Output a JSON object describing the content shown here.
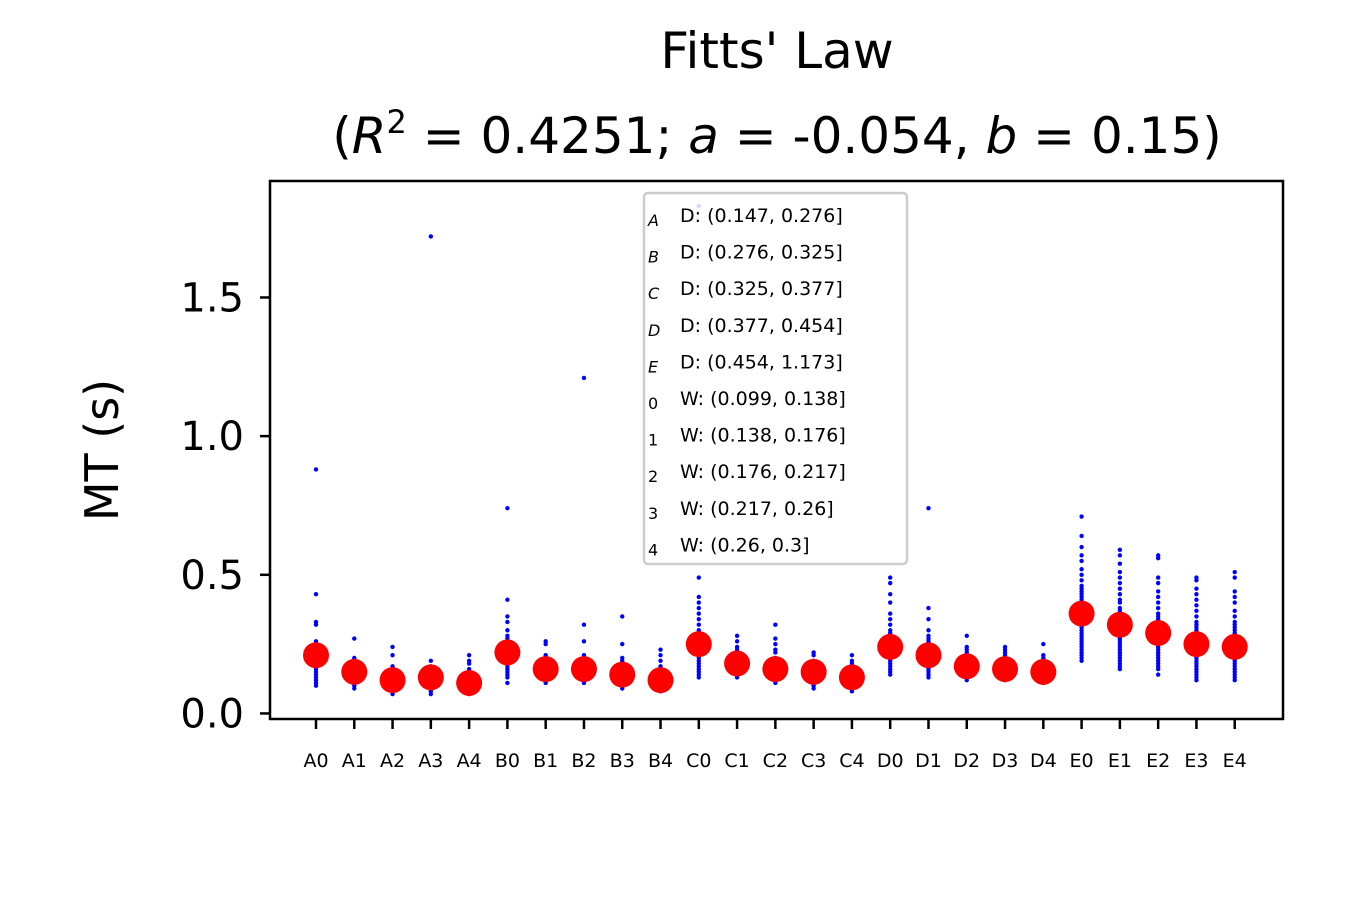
{
  "chart_data": {
    "type": "scatter",
    "title": "Fitts' Law",
    "subtitle": "(R² = 0.4251; a = -0.054, b = 0.15)",
    "subtitle_parts": {
      "r2": "0.4251",
      "a": "-0.054",
      "b": "0.15"
    },
    "xlabel": "",
    "ylabel": "MT (s)",
    "ylim": [
      -0.02,
      1.92
    ],
    "yticks": [
      "0.0",
      "0.5",
      "1.0",
      "1.5"
    ],
    "yticks_values": [
      0.0,
      0.5,
      1.0,
      1.5
    ],
    "categories": [
      "A0",
      "A1",
      "A2",
      "A3",
      "A4",
      "B0",
      "B1",
      "B2",
      "B3",
      "B4",
      "C0",
      "C1",
      "C2",
      "C3",
      "C4",
      "D0",
      "D1",
      "D2",
      "D3",
      "D4",
      "E0",
      "E1",
      "E2",
      "E3",
      "E4"
    ],
    "colors": {
      "points": "#0000ff",
      "means": "#ff0000",
      "legend_border": "#cccccc"
    },
    "legend": {
      "placement": "upper-center",
      "entries": [
        {
          "marker": "A",
          "label": "D: (0.147, 0.276]"
        },
        {
          "marker": "B",
          "label": "D: (0.276, 0.325]"
        },
        {
          "marker": "C",
          "label": "D: (0.325, 0.377]"
        },
        {
          "marker": "D",
          "label": "D: (0.377, 0.454]"
        },
        {
          "marker": "E",
          "label": "D: (0.454, 1.173]"
        },
        {
          "marker": "0",
          "label": "W: (0.099, 0.138]"
        },
        {
          "marker": "1",
          "label": "W: (0.138, 0.176]"
        },
        {
          "marker": "2",
          "label": "W: (0.176, 0.217]"
        },
        {
          "marker": "3",
          "label": "W: (0.217, 0.26]"
        },
        {
          "marker": "4",
          "label": "W: (0.26, 0.3]"
        }
      ]
    },
    "series": [
      {
        "role": "mean",
        "values": [
          0.21,
          0.15,
          0.12,
          0.13,
          0.11,
          0.22,
          0.16,
          0.16,
          0.14,
          0.12,
          0.25,
          0.18,
          0.16,
          0.15,
          0.13,
          0.24,
          0.21,
          0.17,
          0.16,
          0.15,
          0.36,
          0.32,
          0.29,
          0.25,
          0.24
        ]
      },
      {
        "role": "trials",
        "points": [
          [
            0.88,
            0.43,
            0.33,
            0.32,
            0.26,
            0.25,
            0.23,
            0.22,
            0.21,
            0.2,
            0.19,
            0.18,
            0.17,
            0.16,
            0.15,
            0.14,
            0.13,
            0.12,
            0.11,
            0.1
          ],
          [
            0.27,
            0.2,
            0.19,
            0.18,
            0.17,
            0.16,
            0.15,
            0.14,
            0.13,
            0.12,
            0.11,
            0.1,
            0.09
          ],
          [
            0.24,
            0.21,
            0.17,
            0.16,
            0.15,
            0.14,
            0.13,
            0.12,
            0.11,
            0.1,
            0.09,
            0.08,
            0.07
          ],
          [
            1.72,
            0.19,
            0.17,
            0.16,
            0.15,
            0.14,
            0.13,
            0.12,
            0.11,
            0.1,
            0.09,
            0.08,
            0.07
          ],
          [
            0.21,
            0.19,
            0.18,
            0.16,
            0.15,
            0.14,
            0.13,
            0.12,
            0.11,
            0.1,
            0.09,
            0.08,
            0.07
          ],
          [
            0.74,
            0.41,
            0.35,
            0.33,
            0.3,
            0.28,
            0.27,
            0.26,
            0.25,
            0.24,
            0.23,
            0.22,
            0.21,
            0.2,
            0.19,
            0.18,
            0.17,
            0.16,
            0.15,
            0.14,
            0.13,
            0.11
          ],
          [
            0.26,
            0.25,
            0.21,
            0.2,
            0.19,
            0.18,
            0.17,
            0.16,
            0.15,
            0.14,
            0.13,
            0.12,
            0.11
          ],
          [
            1.21,
            0.32,
            0.26,
            0.21,
            0.2,
            0.19,
            0.18,
            0.17,
            0.16,
            0.15,
            0.14,
            0.13,
            0.12,
            0.11
          ],
          [
            0.35,
            0.25,
            0.2,
            0.19,
            0.18,
            0.17,
            0.16,
            0.15,
            0.14,
            0.13,
            0.12,
            0.11,
            0.1,
            0.09
          ],
          [
            0.23,
            0.21,
            0.19,
            0.17,
            0.16,
            0.15,
            0.14,
            0.13,
            0.12,
            0.11,
            0.1,
            0.09,
            0.08
          ],
          [
            1.83,
            0.49,
            0.42,
            0.4,
            0.38,
            0.36,
            0.34,
            0.32,
            0.3,
            0.29,
            0.28,
            0.27,
            0.26,
            0.25,
            0.24,
            0.23,
            0.22,
            0.21,
            0.2,
            0.19,
            0.18,
            0.17,
            0.16,
            0.15,
            0.14,
            0.13
          ],
          [
            0.28,
            0.26,
            0.24,
            0.23,
            0.22,
            0.21,
            0.2,
            0.19,
            0.18,
            0.17,
            0.16,
            0.15,
            0.14,
            0.13
          ],
          [
            0.32,
            0.27,
            0.25,
            0.23,
            0.22,
            0.2,
            0.19,
            0.18,
            0.17,
            0.16,
            0.15,
            0.14,
            0.13,
            0.12,
            0.11
          ],
          [
            0.22,
            0.21,
            0.19,
            0.18,
            0.17,
            0.16,
            0.15,
            0.14,
            0.13,
            0.12,
            0.11,
            0.1,
            0.09
          ],
          [
            0.21,
            0.19,
            0.18,
            0.17,
            0.16,
            0.15,
            0.14,
            0.13,
            0.12,
            0.11,
            0.1,
            0.09,
            0.08
          ],
          [
            0.49,
            0.47,
            0.43,
            0.4,
            0.36,
            0.34,
            0.32,
            0.3,
            0.29,
            0.28,
            0.27,
            0.26,
            0.25,
            0.24,
            0.23,
            0.22,
            0.21,
            0.2,
            0.19,
            0.18,
            0.17,
            0.16,
            0.15,
            0.14
          ],
          [
            0.74,
            0.38,
            0.34,
            0.3,
            0.28,
            0.27,
            0.26,
            0.25,
            0.24,
            0.23,
            0.22,
            0.21,
            0.2,
            0.19,
            0.18,
            0.17,
            0.16,
            0.15,
            0.14,
            0.13
          ],
          [
            0.28,
            0.24,
            0.23,
            0.22,
            0.21,
            0.2,
            0.19,
            0.18,
            0.17,
            0.16,
            0.15,
            0.14,
            0.13,
            0.12
          ],
          [
            0.24,
            0.23,
            0.22,
            0.21,
            0.2,
            0.19,
            0.18,
            0.17,
            0.16,
            0.15,
            0.14,
            0.13,
            0.12
          ],
          [
            0.25,
            0.21,
            0.2,
            0.19,
            0.18,
            0.17,
            0.16,
            0.15,
            0.14,
            0.13,
            0.12,
            0.11
          ],
          [
            0.71,
            0.64,
            0.6,
            0.57,
            0.55,
            0.52,
            0.5,
            0.48,
            0.46,
            0.45,
            0.44,
            0.43,
            0.42,
            0.41,
            0.4,
            0.39,
            0.38,
            0.37,
            0.36,
            0.35,
            0.34,
            0.33,
            0.32,
            0.31,
            0.3,
            0.29,
            0.28,
            0.27,
            0.26,
            0.25,
            0.24,
            0.23,
            0.22,
            0.21,
            0.2,
            0.19
          ],
          [
            0.59,
            0.57,
            0.54,
            0.51,
            0.49,
            0.47,
            0.45,
            0.43,
            0.41,
            0.4,
            0.38,
            0.37,
            0.36,
            0.35,
            0.34,
            0.33,
            0.32,
            0.31,
            0.3,
            0.29,
            0.28,
            0.27,
            0.26,
            0.25,
            0.24,
            0.23,
            0.22,
            0.21,
            0.2,
            0.19,
            0.18,
            0.17,
            0.16
          ],
          [
            0.57,
            0.56,
            0.49,
            0.47,
            0.44,
            0.42,
            0.4,
            0.38,
            0.36,
            0.35,
            0.34,
            0.33,
            0.32,
            0.31,
            0.3,
            0.29,
            0.28,
            0.27,
            0.26,
            0.25,
            0.24,
            0.23,
            0.22,
            0.21,
            0.2,
            0.19,
            0.18,
            0.17,
            0.16,
            0.14
          ],
          [
            0.49,
            0.48,
            0.45,
            0.43,
            0.41,
            0.39,
            0.37,
            0.35,
            0.33,
            0.32,
            0.31,
            0.3,
            0.29,
            0.28,
            0.27,
            0.26,
            0.25,
            0.24,
            0.23,
            0.22,
            0.21,
            0.2,
            0.19,
            0.18,
            0.17,
            0.16,
            0.15,
            0.14,
            0.13,
            0.12
          ],
          [
            0.51,
            0.49,
            0.44,
            0.42,
            0.4,
            0.37,
            0.35,
            0.33,
            0.32,
            0.31,
            0.3,
            0.29,
            0.28,
            0.27,
            0.26,
            0.25,
            0.24,
            0.23,
            0.22,
            0.21,
            0.2,
            0.19,
            0.18,
            0.17,
            0.16,
            0.15,
            0.14,
            0.13,
            0.12
          ]
        ]
      }
    ],
    "grid": false
  }
}
